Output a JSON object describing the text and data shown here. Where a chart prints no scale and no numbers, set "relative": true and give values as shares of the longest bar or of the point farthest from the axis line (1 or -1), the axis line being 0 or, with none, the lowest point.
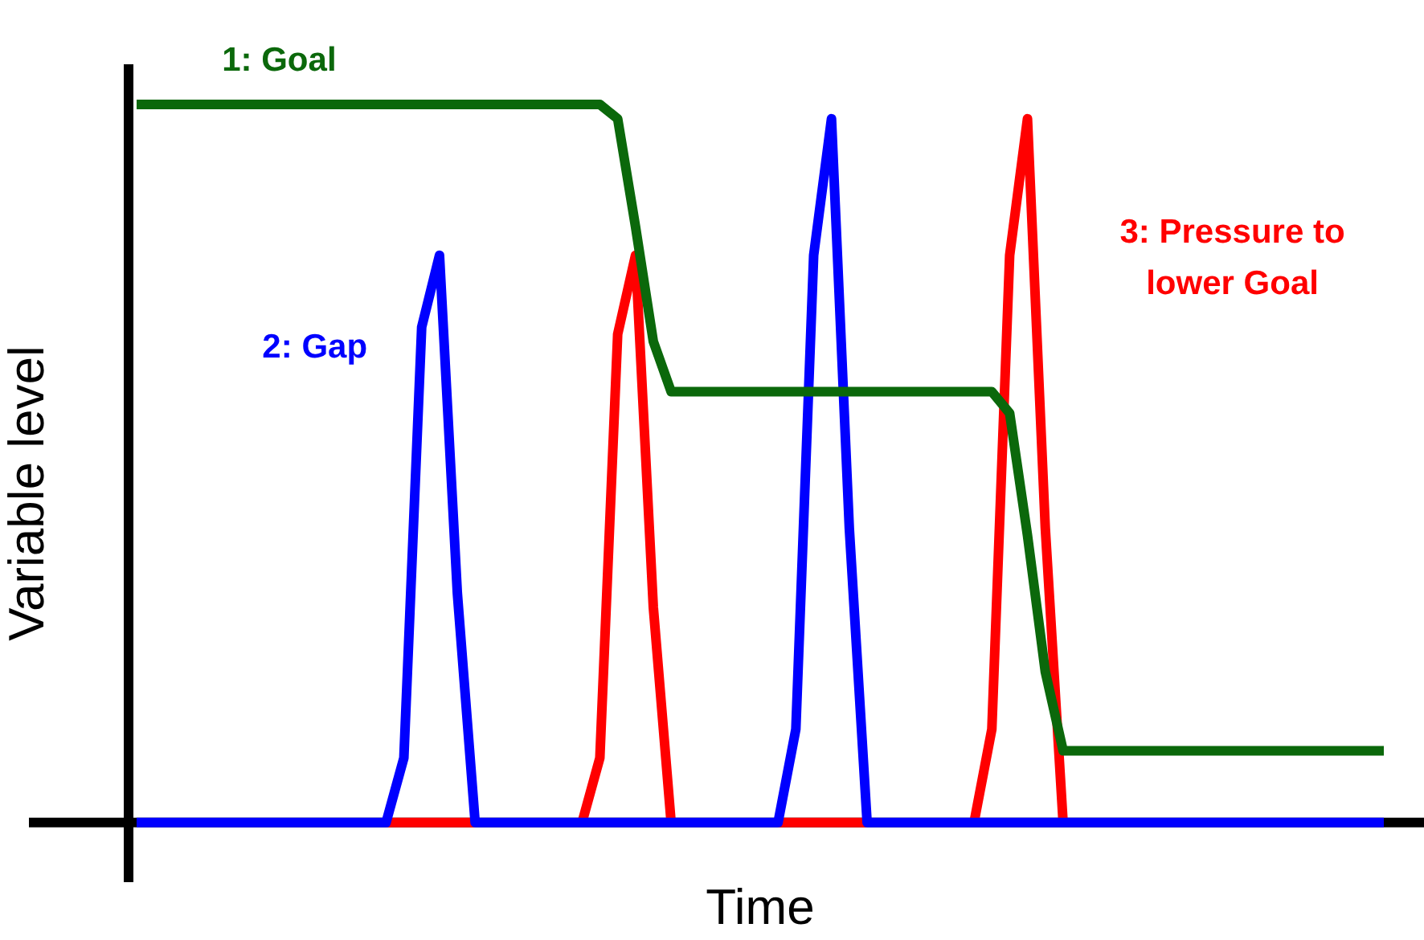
{
  "chart_data": {
    "type": "line",
    "relative": true,
    "xlabel": "Time",
    "ylabel": "Variable level",
    "legend": false,
    "grid": false,
    "marker": "none",
    "line_style": "solid",
    "categories": [
      null,
      null,
      null,
      null,
      null,
      null,
      null,
      null,
      null,
      null,
      null,
      null,
      null,
      null,
      null,
      null,
      null,
      null,
      null,
      null,
      null,
      null,
      null,
      null,
      null,
      null,
      null,
      null,
      null,
      null,
      null,
      null,
      null,
      null,
      null,
      null,
      null,
      null,
      null,
      null,
      null,
      null,
      null,
      null,
      null,
      null,
      null,
      null,
      null,
      null,
      null,
      null,
      null,
      null,
      null,
      null,
      null,
      null,
      null,
      null,
      null,
      null,
      null,
      null,
      null,
      null,
      null,
      null,
      null,
      null,
      null
    ],
    "series": [
      {
        "name": "1: Goal",
        "color": "#0b680b",
        "values": [
          1,
          1,
          1,
          1,
          1,
          1,
          1,
          1,
          1,
          1,
          1,
          1,
          1,
          1,
          1,
          1,
          1,
          1,
          1,
          1,
          1,
          1,
          1,
          1,
          1,
          1,
          1,
          0.98,
          0.83,
          0.67,
          0.6,
          0.6,
          0.6,
          0.6,
          0.6,
          0.6,
          0.6,
          0.6,
          0.6,
          0.6,
          0.6,
          0.6,
          0.6,
          0.6,
          0.6,
          0.6,
          0.6,
          0.6,
          0.6,
          0.57,
          0.4,
          0.21,
          0.1,
          0.1,
          0.1,
          0.1,
          0.1,
          0.1,
          0.1,
          0.1,
          0.1,
          0.1,
          0.1,
          0.1,
          0.1,
          0.1,
          0.1,
          0.1,
          0.1,
          0.1,
          0.1
        ]
      },
      {
        "name": "2: Gap",
        "color": "#0000ff",
        "values": [
          0,
          0,
          0,
          0,
          0,
          0,
          0,
          0,
          0,
          0,
          0,
          0,
          0,
          0,
          0,
          0.09,
          0.69,
          0.79,
          0.32,
          0,
          0,
          0,
          0,
          0,
          0,
          0,
          0,
          0,
          0,
          0,
          0,
          0,
          0,
          0,
          0,
          0,
          0,
          0.13,
          0.79,
          0.98,
          0.41,
          0,
          0,
          0,
          0,
          0,
          0,
          0,
          0,
          0,
          0,
          0,
          0,
          0,
          0,
          0,
          0,
          0,
          0,
          0,
          0,
          0,
          0,
          0,
          0,
          0,
          0,
          0,
          0,
          0,
          0
        ]
      },
      {
        "name": "3: Pressure to lower Goal",
        "color": "#ff0000",
        "values": [
          null,
          null,
          null,
          null,
          null,
          null,
          null,
          null,
          null,
          null,
          null,
          null,
          null,
          null,
          0,
          0,
          0,
          0,
          0,
          0,
          null,
          null,
          null,
          null,
          null,
          0,
          0.09,
          0.68,
          0.79,
          0.3,
          0,
          null,
          null,
          null,
          null,
          null,
          0,
          0,
          0,
          0,
          0,
          0,
          null,
          null,
          null,
          null,
          null,
          0,
          0.13,
          0.79,
          0.98,
          0.41,
          0,
          null,
          null,
          null,
          null,
          null,
          null,
          null,
          null,
          null,
          null,
          null,
          null,
          null,
          null,
          null,
          null,
          null,
          null
        ]
      }
    ]
  }
}
